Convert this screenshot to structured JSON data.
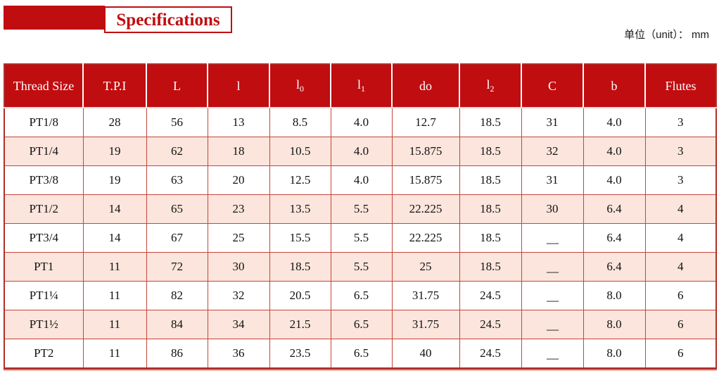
{
  "page": {
    "title": "Specifications",
    "unit_label": "单位（unit）： mm"
  },
  "colors": {
    "primary_red": "#c00d10",
    "row_alt_pink": "#fbe5dc",
    "grid_red": "#c5453b",
    "outer_border_red": "#b0302b",
    "header_text": "#ffffff",
    "body_text": "#111111"
  },
  "table": {
    "columns": [
      {
        "label": "Thread Size"
      },
      {
        "label": "T.P.I"
      },
      {
        "label": "L"
      },
      {
        "label": "l"
      },
      {
        "label": "l",
        "sub": "0"
      },
      {
        "label": "l",
        "sub": "1"
      },
      {
        "label": "do"
      },
      {
        "label": "l",
        "sub": "2"
      },
      {
        "label": "C"
      },
      {
        "label": "b"
      },
      {
        "label": "Flutes"
      }
    ],
    "rows": [
      [
        "PT1/8",
        "28",
        "56",
        "13",
        "8.5",
        "4.0",
        "12.7",
        "18.5",
        "31",
        "4.0",
        "3"
      ],
      [
        "PT1/4",
        "19",
        "62",
        "18",
        "10.5",
        "4.0",
        "15.875",
        "18.5",
        "32",
        "4.0",
        "3"
      ],
      [
        "PT3/8",
        "19",
        "63",
        "20",
        "12.5",
        "4.0",
        "15.875",
        "18.5",
        "31",
        "4.0",
        "3"
      ],
      [
        "PT1/2",
        "14",
        "65",
        "23",
        "13.5",
        "5.5",
        "22.225",
        "18.5",
        "30",
        "6.4",
        "4"
      ],
      [
        "PT3/4",
        "14",
        "67",
        "25",
        "15.5",
        "5.5",
        "22.225",
        "18.5",
        "—",
        "6.4",
        "4"
      ],
      [
        "PT1",
        "11",
        "72",
        "30",
        "18.5",
        "5.5",
        "25",
        "18.5",
        "—",
        "6.4",
        "4"
      ],
      [
        "PT1¼",
        "11",
        "82",
        "32",
        "20.5",
        "6.5",
        "31.75",
        "24.5",
        "—",
        "8.0",
        "6"
      ],
      [
        "PT1½",
        "11",
        "84",
        "34",
        "21.5",
        "6.5",
        "31.75",
        "24.5",
        "—",
        "8.0",
        "6"
      ],
      [
        "PT2",
        "11",
        "86",
        "36",
        "23.5",
        "6.5",
        "40",
        "24.5",
        "—",
        "8.0",
        "6"
      ]
    ]
  }
}
